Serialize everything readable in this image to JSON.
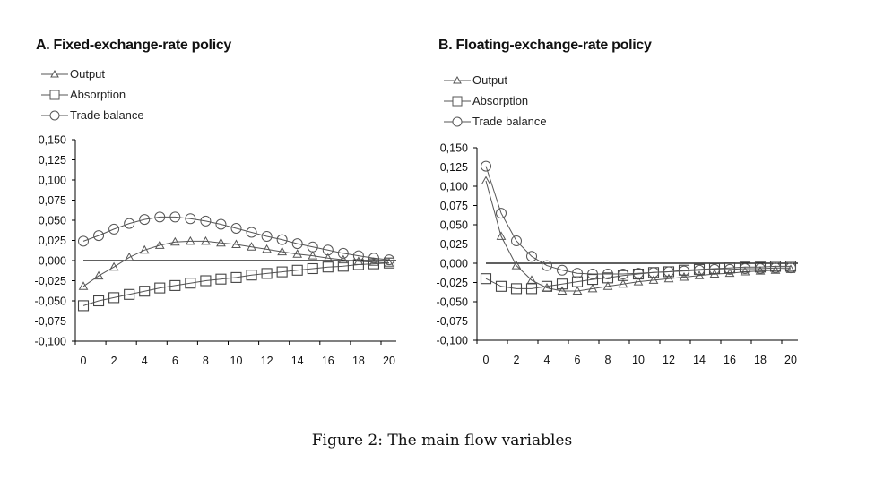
{
  "caption": "Figure 2: The main flow variables",
  "chart_data": [
    {
      "type": "line",
      "title": "A. Fixed-exchange-rate policy",
      "xlabel": "",
      "ylabel": "",
      "x": [
        0,
        1,
        2,
        3,
        4,
        5,
        6,
        7,
        8,
        9,
        10,
        11,
        12,
        13,
        14,
        15,
        16,
        17,
        18,
        19,
        20
      ],
      "xticks": [
        "0",
        "2",
        "4",
        "6",
        "8",
        "10",
        "12",
        "14",
        "16",
        "18",
        "20"
      ],
      "yticks": [
        "0,150",
        "0,125",
        "0,100",
        "0,075",
        "0,050",
        "0,025",
        "0,000",
        "-0,025",
        "-0,050",
        "-0,075",
        "-0,100"
      ],
      "ylim": [
        -0.1,
        0.15
      ],
      "grid": false,
      "legend_position": "top-left",
      "series": [
        {
          "name": "Output",
          "marker": "triangle",
          "values": [
            -0.032,
            -0.019,
            -0.008,
            0.004,
            0.013,
            0.019,
            0.023,
            0.024,
            0.024,
            0.022,
            0.02,
            0.017,
            0.014,
            0.011,
            0.008,
            0.006,
            0.003,
            0.001,
            -0.001,
            -0.002,
            -0.003
          ]
        },
        {
          "name": "Absorption",
          "marker": "square",
          "values": [
            -0.056,
            -0.05,
            -0.046,
            -0.042,
            -0.038,
            -0.034,
            -0.031,
            -0.028,
            -0.025,
            -0.023,
            -0.021,
            -0.018,
            -0.016,
            -0.014,
            -0.012,
            -0.01,
            -0.008,
            -0.007,
            -0.005,
            -0.004,
            -0.003
          ]
        },
        {
          "name": "Trade balance",
          "marker": "circle",
          "values": [
            0.024,
            0.031,
            0.039,
            0.046,
            0.051,
            0.054,
            0.054,
            0.052,
            0.049,
            0.045,
            0.04,
            0.035,
            0.03,
            0.026,
            0.021,
            0.017,
            0.013,
            0.009,
            0.006,
            0.003,
            0.001
          ]
        }
      ]
    },
    {
      "type": "line",
      "title": "B. Floating-exchange-rate policy",
      "xlabel": "",
      "ylabel": "",
      "x": [
        0,
        1,
        2,
        3,
        4,
        5,
        6,
        7,
        8,
        9,
        10,
        11,
        12,
        13,
        14,
        15,
        16,
        17,
        18,
        19,
        20
      ],
      "xticks": [
        "0",
        "2",
        "4",
        "6",
        "8",
        "10",
        "12",
        "14",
        "16",
        "18",
        "20"
      ],
      "yticks": [
        "0,150",
        "0,125",
        "0,100",
        "0,075",
        "0,050",
        "0,025",
        "0,000",
        "-0,025",
        "-0,050",
        "-0,075",
        "-0,100"
      ],
      "ylim": [
        -0.1,
        0.15
      ],
      "grid": false,
      "legend_position": "top-left",
      "series": [
        {
          "name": "Output",
          "marker": "triangle",
          "values": [
            0.107,
            0.035,
            -0.003,
            -0.022,
            -0.032,
            -0.036,
            -0.036,
            -0.033,
            -0.03,
            -0.027,
            -0.024,
            -0.022,
            -0.02,
            -0.018,
            -0.016,
            -0.014,
            -0.013,
            -0.011,
            -0.01,
            -0.009,
            -0.008
          ]
        },
        {
          "name": "Absorption",
          "marker": "square",
          "values": [
            -0.02,
            -0.03,
            -0.033,
            -0.033,
            -0.03,
            -0.027,
            -0.024,
            -0.021,
            -0.019,
            -0.016,
            -0.014,
            -0.012,
            -0.011,
            -0.009,
            -0.008,
            -0.007,
            -0.006,
            -0.005,
            -0.005,
            -0.004,
            -0.004
          ]
        },
        {
          "name": "Trade balance",
          "marker": "circle",
          "values": [
            0.126,
            0.065,
            0.029,
            0.009,
            -0.003,
            -0.009,
            -0.013,
            -0.014,
            -0.014,
            -0.014,
            -0.013,
            -0.012,
            -0.011,
            -0.01,
            -0.009,
            -0.008,
            -0.008,
            -0.007,
            -0.007,
            -0.006,
            -0.006
          ]
        }
      ]
    }
  ]
}
